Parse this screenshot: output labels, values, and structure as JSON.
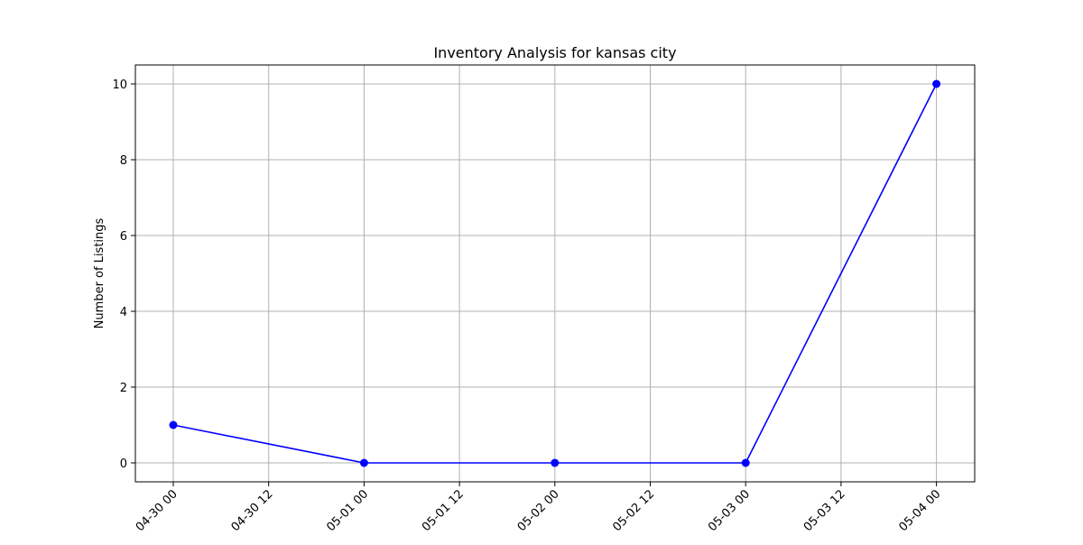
{
  "chart_data": {
    "type": "line",
    "title": "Inventory Analysis for kansas city",
    "xlabel": "",
    "ylabel": "Number of Listings",
    "x_ticks": [
      "04-30 00",
      "04-30 12",
      "05-01 00",
      "05-01 12",
      "05-02 00",
      "05-02 12",
      "05-03 00",
      "05-03 12",
      "05-04 00"
    ],
    "y_ticks": [
      "0",
      "2",
      "4",
      "6",
      "8",
      "10"
    ],
    "x": [
      "04-30 00",
      "05-01 00",
      "05-02 00",
      "05-03 00",
      "05-04 00"
    ],
    "series": [
      {
        "values": [
          1,
          0,
          0,
          0,
          10
        ],
        "color": "#0000ff",
        "marker": "circle"
      }
    ],
    "ylim": [
      -0.5,
      10.5
    ],
    "grid": true,
    "legend": "none"
  }
}
